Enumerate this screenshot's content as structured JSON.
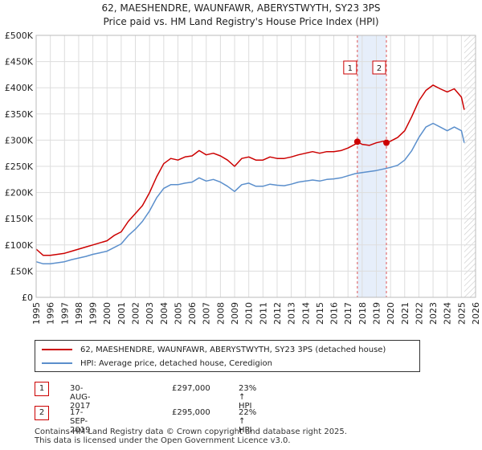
{
  "title_line1": "62, MAESHENDRE, WAUNFAWR, ABERYSTWYTH, SY23 3PS",
  "title_line2": "Price paid vs. HM Land Registry's House Price Index (HPI)",
  "chart_data": {
    "type": "line",
    "ylim": [
      0,
      500000
    ],
    "xlim": [
      1995,
      2026
    ],
    "y_ticks": [
      0,
      50000,
      100000,
      150000,
      200000,
      250000,
      300000,
      350000,
      400000,
      450000,
      500000
    ],
    "y_tick_labels": [
      "£0",
      "£50K",
      "£100K",
      "£150K",
      "£200K",
      "£250K",
      "£300K",
      "£350K",
      "£400K",
      "£450K",
      "£500K"
    ],
    "x_ticks": [
      1995,
      1996,
      1997,
      1998,
      1999,
      2000,
      2001,
      2002,
      2003,
      2004,
      2005,
      2006,
      2007,
      2008,
      2009,
      2010,
      2011,
      2012,
      2013,
      2014,
      2015,
      2016,
      2017,
      2018,
      2019,
      2020,
      2021,
      2022,
      2023,
      2024,
      2025,
      2026
    ],
    "x_tick_labels": [
      "1995",
      "1996",
      "1997",
      "1998",
      "1999",
      "2000",
      "2001",
      "2002",
      "2003",
      "2004",
      "2005",
      "2006",
      "2007",
      "2008",
      "2009",
      "2010",
      "2011",
      "2012",
      "2013",
      "2014",
      "2015",
      "2016",
      "2017",
      "2018",
      "2019",
      "2020",
      "2021",
      "2022",
      "2023",
      "2024",
      "2025",
      "2026"
    ],
    "grid": true,
    "series": [
      {
        "name": "62, MAESHENDRE, WAUNFAWR, ABERYSTWYTH, SY23 3PS (detached house)",
        "color": "#cc0000",
        "x": [
          1995.0,
          1995.5,
          1996.0,
          1996.5,
          1997.0,
          1997.5,
          1998.0,
          1998.5,
          1999.0,
          1999.5,
          2000.0,
          2000.5,
          2001.0,
          2001.5,
          2002.0,
          2002.5,
          2003.0,
          2003.5,
          2004.0,
          2004.5,
          2005.0,
          2005.5,
          2006.0,
          2006.5,
          2007.0,
          2007.5,
          2008.0,
          2008.5,
          2009.0,
          2009.5,
          2010.0,
          2010.5,
          2011.0,
          2011.5,
          2012.0,
          2012.5,
          2013.0,
          2013.5,
          2014.0,
          2014.5,
          2015.0,
          2015.5,
          2016.0,
          2016.5,
          2017.0,
          2017.5,
          2017.66,
          2018.0,
          2018.5,
          2019.0,
          2019.5,
          2019.71,
          2020.0,
          2020.5,
          2021.0,
          2021.5,
          2022.0,
          2022.5,
          2023.0,
          2023.5,
          2024.0,
          2024.5,
          2025.0,
          2025.2
        ],
        "values": [
          92000,
          80000,
          80000,
          82000,
          84000,
          88000,
          92000,
          96000,
          100000,
          104000,
          108000,
          118000,
          125000,
          145000,
          160000,
          175000,
          200000,
          230000,
          255000,
          265000,
          262000,
          268000,
          270000,
          280000,
          272000,
          275000,
          270000,
          262000,
          250000,
          265000,
          268000,
          262000,
          262000,
          268000,
          265000,
          265000,
          268000,
          272000,
          275000,
          278000,
          275000,
          278000,
          278000,
          280000,
          285000,
          292000,
          297000,
          292000,
          290000,
          295000,
          298000,
          295000,
          298000,
          305000,
          318000,
          345000,
          375000,
          395000,
          405000,
          398000,
          392000,
          398000,
          382000,
          358000
        ]
      },
      {
        "name": "HPI: Average price, detached house, Ceredigion",
        "color": "#5b8fcc",
        "x": [
          1995.0,
          1995.5,
          1996.0,
          1996.5,
          1997.0,
          1997.5,
          1998.0,
          1998.5,
          1999.0,
          1999.5,
          2000.0,
          2000.5,
          2001.0,
          2001.5,
          2002.0,
          2002.5,
          2003.0,
          2003.5,
          2004.0,
          2004.5,
          2005.0,
          2005.5,
          2006.0,
          2006.5,
          2007.0,
          2007.5,
          2008.0,
          2008.5,
          2009.0,
          2009.5,
          2010.0,
          2010.5,
          2011.0,
          2011.5,
          2012.0,
          2012.5,
          2013.0,
          2013.5,
          2014.0,
          2014.5,
          2015.0,
          2015.5,
          2016.0,
          2016.5,
          2017.0,
          2017.5,
          2018.0,
          2018.5,
          2019.0,
          2019.5,
          2020.0,
          2020.5,
          2021.0,
          2021.5,
          2022.0,
          2022.5,
          2023.0,
          2023.5,
          2024.0,
          2024.5,
          2025.0,
          2025.2
        ],
        "values": [
          68000,
          64000,
          64000,
          66000,
          68000,
          72000,
          75000,
          78000,
          82000,
          85000,
          88000,
          95000,
          102000,
          118000,
          130000,
          145000,
          165000,
          190000,
          208000,
          215000,
          215000,
          218000,
          220000,
          228000,
          222000,
          225000,
          220000,
          212000,
          202000,
          215000,
          218000,
          212000,
          212000,
          216000,
          214000,
          213000,
          216000,
          220000,
          222000,
          224000,
          222000,
          225000,
          226000,
          228000,
          232000,
          236000,
          238000,
          240000,
          242000,
          245000,
          248000,
          252000,
          262000,
          280000,
          305000,
          325000,
          332000,
          325000,
          318000,
          325000,
          318000,
          295000
        ]
      }
    ],
    "markers": [
      {
        "label": "1",
        "x": 2017.66,
        "value": 297000
      },
      {
        "label": "2",
        "x": 2019.71,
        "value": 295000
      }
    ],
    "shaded_span": [
      2017.66,
      2019.71
    ]
  },
  "legend": {
    "items": [
      {
        "label": "62, MAESHENDRE, WAUNFAWR, ABERYSTWYTH, SY23 3PS (detached house)",
        "color": "#cc0000"
      },
      {
        "label": "HPI: Average price, detached house, Ceredigion",
        "color": "#5b8fcc"
      }
    ]
  },
  "transactions": [
    {
      "num": "1",
      "date": "30-AUG-2017",
      "price": "£297,000",
      "hpi": "23% ↑ HPI"
    },
    {
      "num": "2",
      "date": "17-SEP-2019",
      "price": "£295,000",
      "hpi": "22% ↑ HPI"
    }
  ],
  "footer": {
    "line1": "Contains HM Land Registry data © Crown copyright and database right 2025.",
    "line2": "This data is licensed under the Open Government Licence v3.0."
  }
}
